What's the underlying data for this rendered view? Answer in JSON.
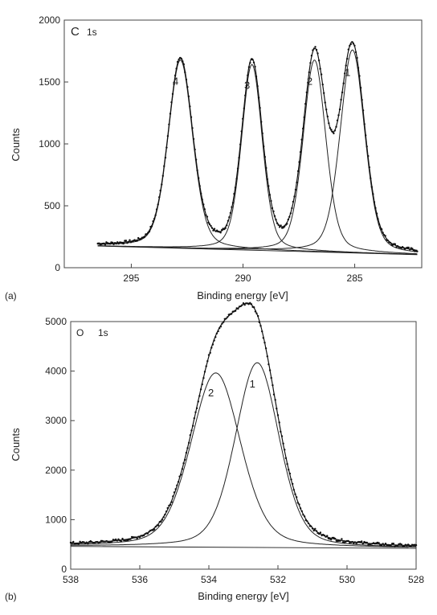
{
  "chart_data": [
    {
      "type": "line",
      "panel_label": "(a)",
      "title": "C  1s",
      "title_letter": "C",
      "title_sub": "1s",
      "xlabel": "Binding energy [eV]",
      "ylabel": "Counts",
      "x_reversed": true,
      "xlim": [
        298,
        282
      ],
      "ylim": [
        0,
        2000
      ],
      "xticks": [
        295,
        290,
        285
      ],
      "yticks": [
        0,
        500,
        1000,
        1500,
        2000
      ],
      "background": {
        "x": [
          296.5,
          282.2
        ],
        "y": [
          175,
          105
        ]
      },
      "peaks": [
        {
          "label": "4",
          "center": 292.8,
          "height": 1520,
          "fwhm": 1.3
        },
        {
          "label": "3",
          "center": 289.6,
          "height": 1500,
          "fwhm": 1.1
        },
        {
          "label": "2",
          "center": 286.8,
          "height": 1550,
          "fwhm": 1.2
        },
        {
          "label": "1",
          "center": 285.1,
          "height": 1640,
          "fwhm": 1.3
        }
      ],
      "data_range": [
        296.5,
        282.2
      ]
    },
    {
      "type": "line",
      "panel_label": "(b)",
      "title": "O  1s",
      "title_letter": "O",
      "title_sub": "1s",
      "xlabel": "Binding energy [eV]",
      "ylabel": "Counts",
      "x_reversed": true,
      "xlim": [
        538,
        528
      ],
      "ylim": [
        0,
        5000
      ],
      "xticks": [
        538,
        536,
        534,
        532,
        530,
        528
      ],
      "yticks": [
        0,
        1000,
        2000,
        3000,
        4000,
        5000
      ],
      "background": {
        "x": [
          538,
          528
        ],
        "y": [
          460,
          420
        ]
      },
      "peaks": [
        {
          "label": "2",
          "center": 533.8,
          "height": 3520,
          "fwhm": 1.7
        },
        {
          "label": "1",
          "center": 532.6,
          "height": 3730,
          "fwhm": 1.5
        }
      ],
      "data_range": [
        538,
        528
      ]
    }
  ]
}
